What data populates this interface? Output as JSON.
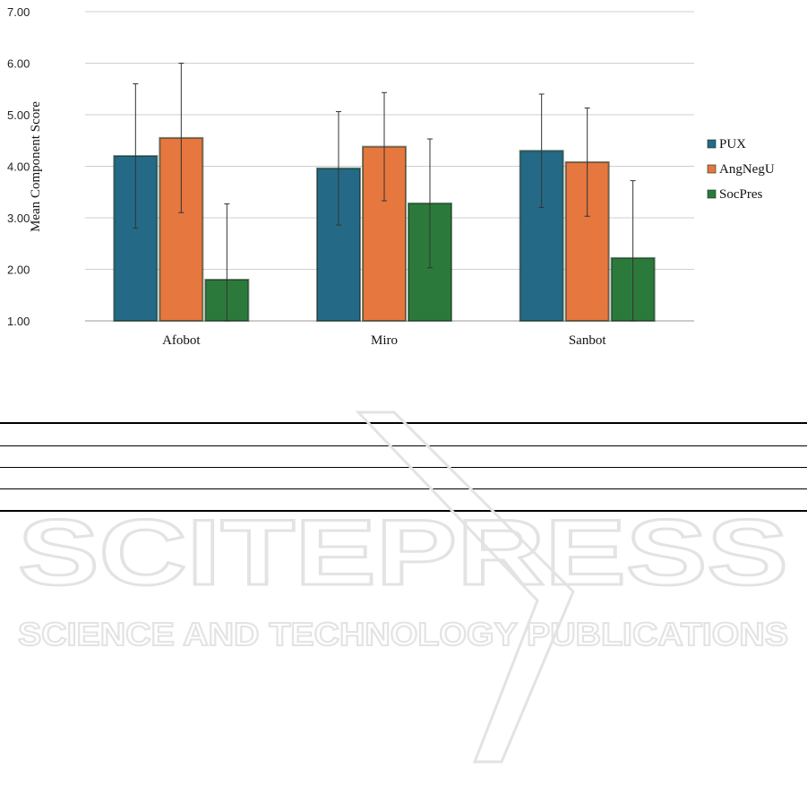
{
  "chart_data": {
    "type": "bar",
    "title": "",
    "xlabel": "",
    "ylabel": "Mean Component Score",
    "ylim": [
      1.0,
      7.0
    ],
    "yticks": [
      "1.00",
      "2.00",
      "3.00",
      "4.00",
      "5.00",
      "6.00",
      "7.00"
    ],
    "grid": true,
    "legend_position": "right",
    "categories": [
      "Afobot",
      "Miro",
      "Sanbot"
    ],
    "series": [
      {
        "name": "PUX",
        "color": "#246a86",
        "values": [
          4.2,
          3.96,
          4.3
        ],
        "errors": [
          1.4,
          1.1,
          1.1
        ]
      },
      {
        "name": "AngNegU",
        "color": "#e5773f",
        "values": [
          4.55,
          4.38,
          4.08
        ],
        "errors": [
          1.45,
          1.05,
          1.05
        ]
      },
      {
        "name": "SocPres",
        "color": "#2b7a3b",
        "values": [
          1.8,
          3.28,
          2.22
        ],
        "errors": [
          1.47,
          1.25,
          1.5
        ]
      }
    ]
  },
  "watermark": {
    "title": "SCITEPRESS",
    "subtitle": "SCIENCE AND TECHNOLOGY PUBLICATIONS"
  }
}
